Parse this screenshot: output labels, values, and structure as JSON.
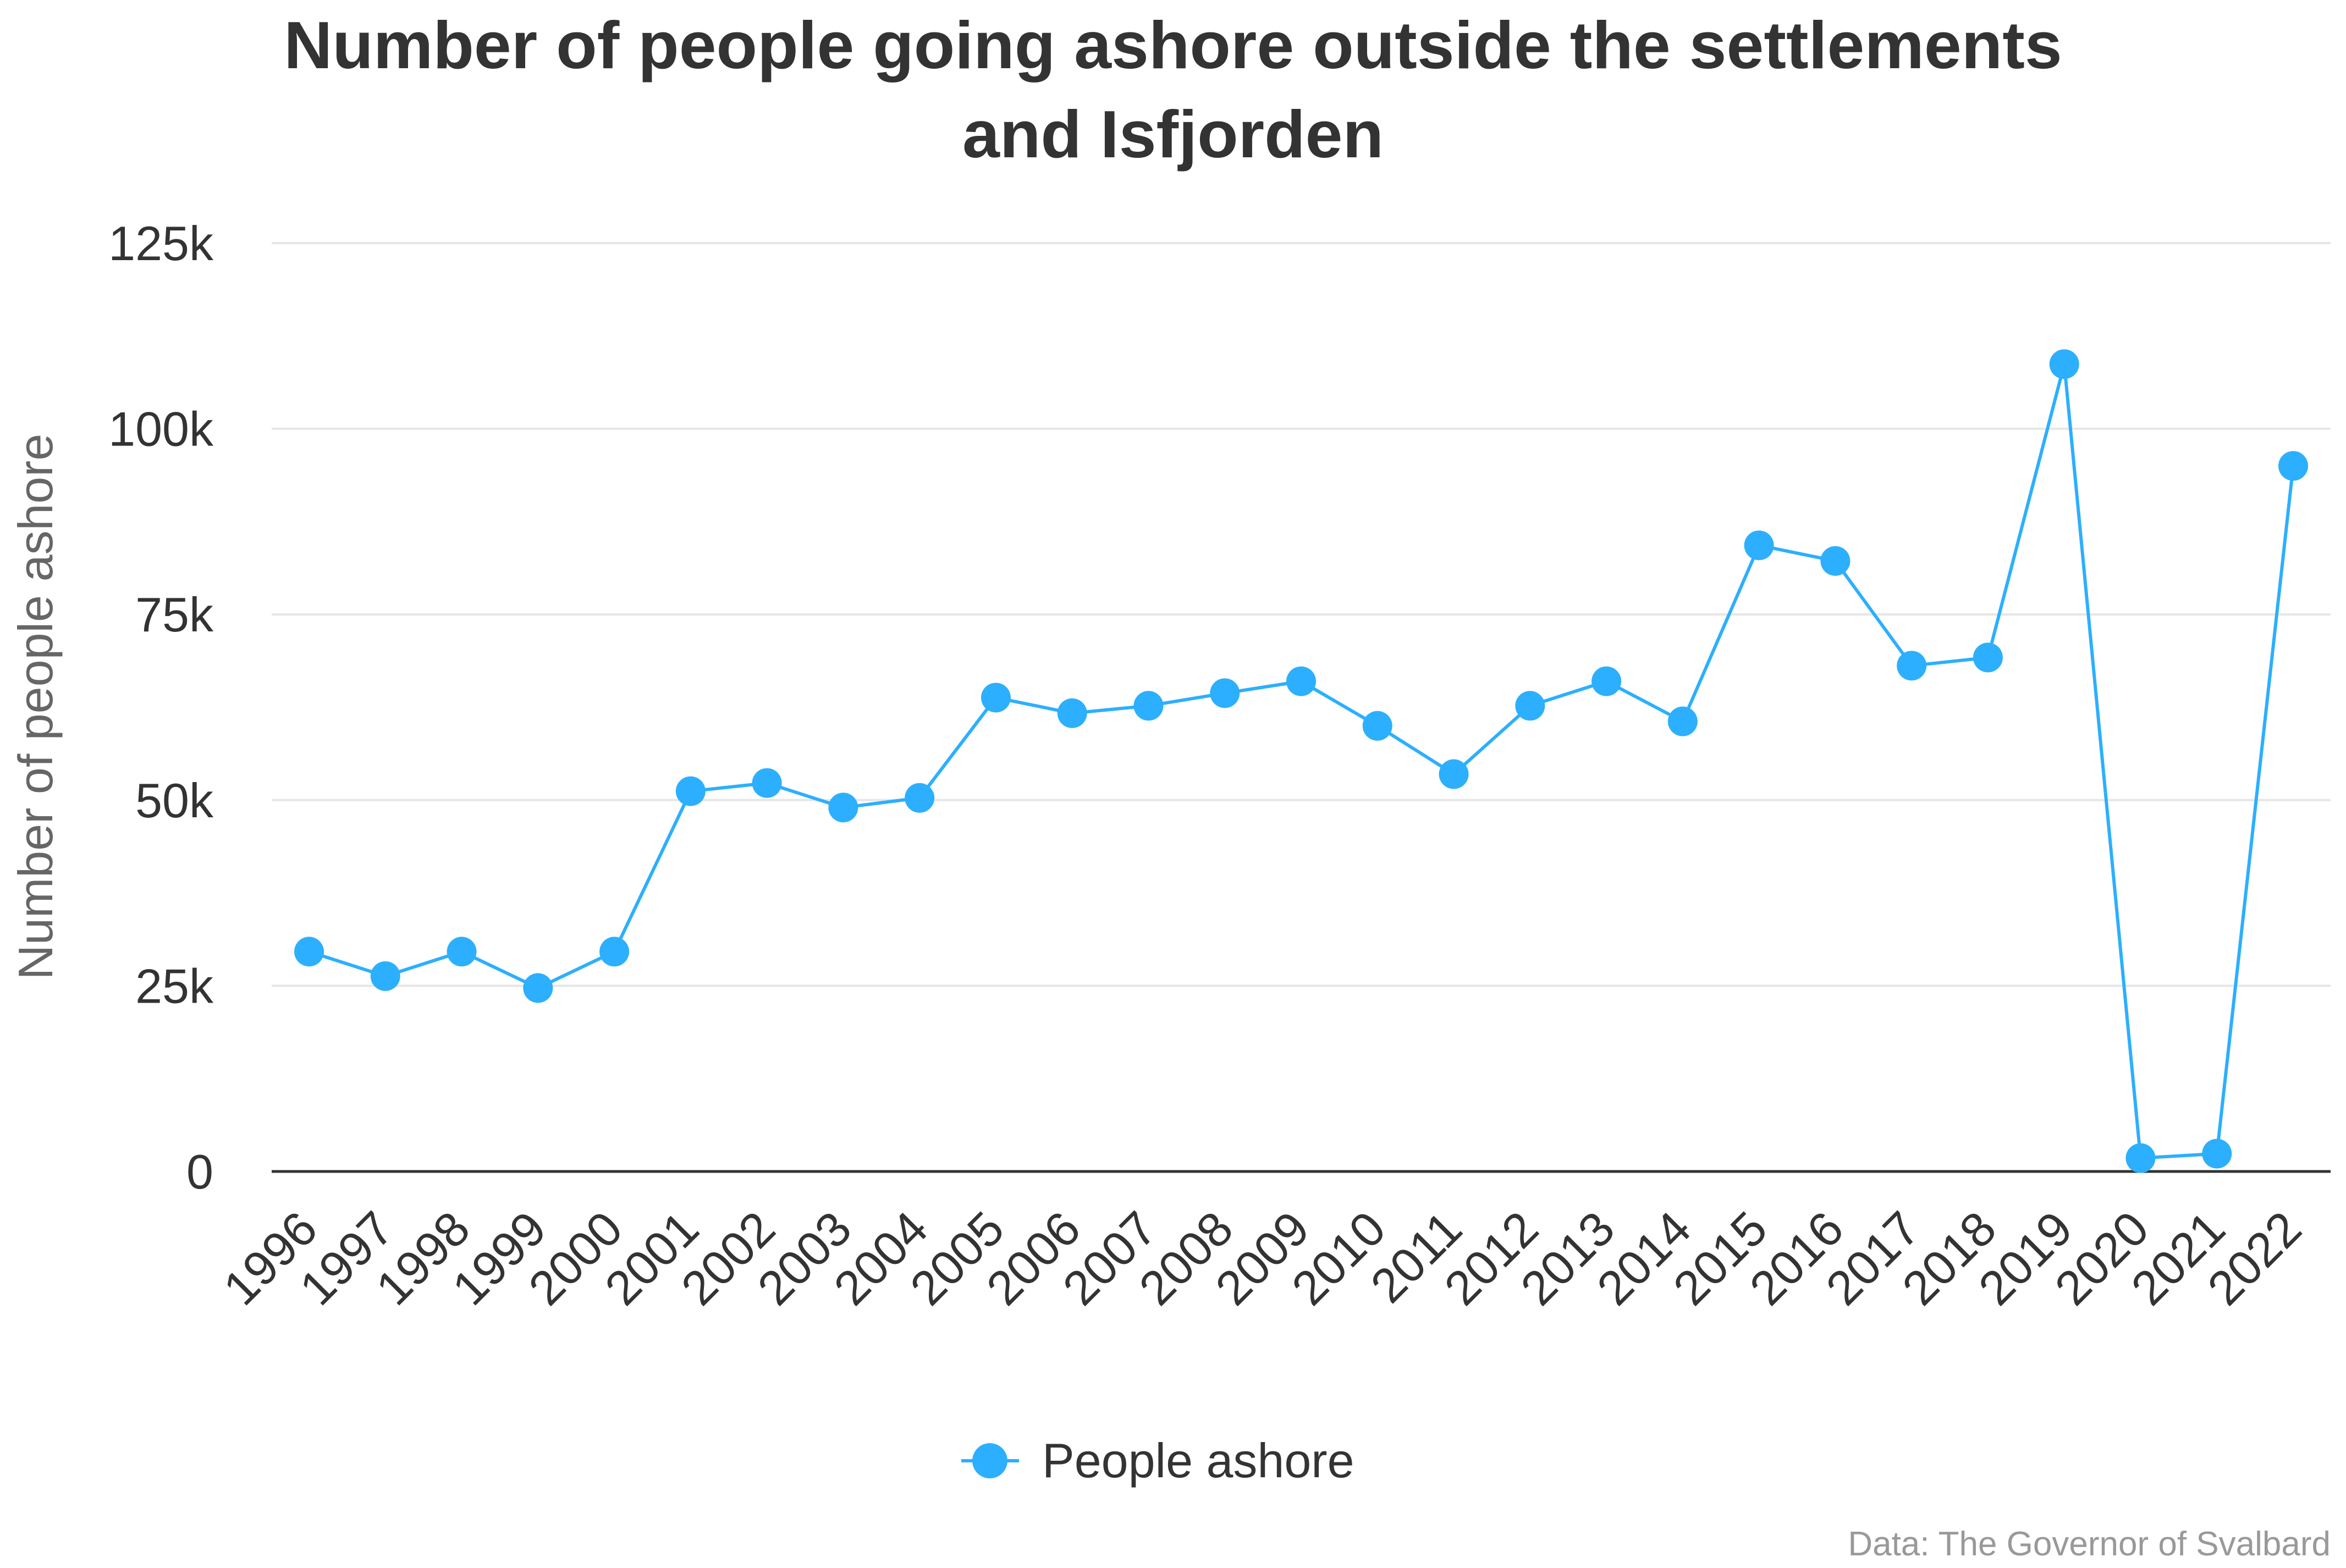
{
  "chart_data": {
    "type": "line",
    "title": "Number of people going ashore outside the settlements and Isfjorden",
    "title_lines": [
      "Number of people going ashore outside the settlements",
      "and Isfjorden"
    ],
    "xlabel": "",
    "ylabel": "Number of people ashore",
    "ylim": [
      0,
      125000
    ],
    "yticks": [
      0,
      25000,
      50000,
      75000,
      100000,
      125000
    ],
    "ytick_labels": [
      "0",
      "25k",
      "50k",
      "75k",
      "100k",
      "125k"
    ],
    "grid": true,
    "legend_position": "bottom-center",
    "categories": [
      "1996",
      "1997",
      "1998",
      "1999",
      "2000",
      "2001",
      "2002",
      "2003",
      "2004",
      "2005",
      "2006",
      "2007",
      "2008",
      "2009",
      "2010",
      "2011",
      "2012",
      "2013",
      "2014",
      "2015",
      "2016",
      "2017",
      "2018",
      "2019",
      "2020",
      "2021",
      "2022"
    ],
    "series": [
      {
        "name": "People ashore",
        "color": "#2caffe",
        "values": [
          29600,
          26300,
          29600,
          24700,
          29600,
          51200,
          52300,
          49000,
          50300,
          63800,
          61700,
          62700,
          64400,
          66000,
          60000,
          53500,
          62700,
          66000,
          60600,
          84300,
          82200,
          68100,
          69200,
          108700,
          1800,
          2400,
          95000
        ]
      }
    ],
    "credits": "Data: The Governor of Svalbard"
  }
}
